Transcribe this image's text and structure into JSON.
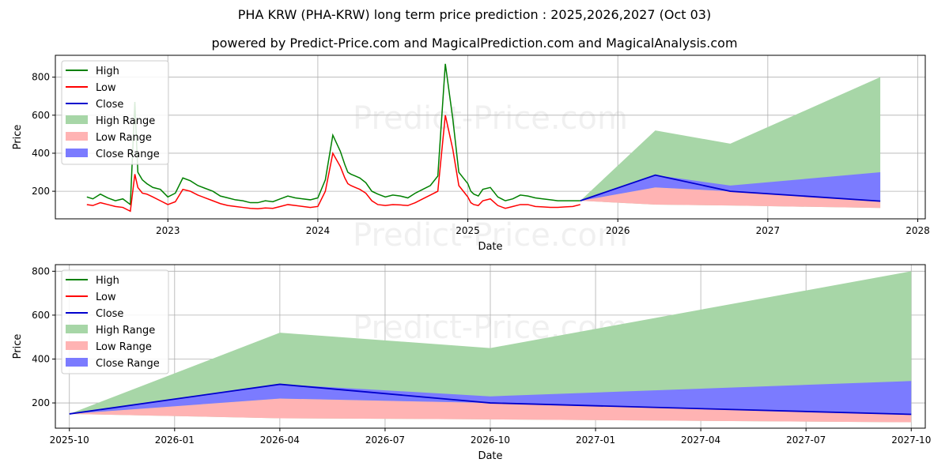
{
  "title": "PHA KRW (PHA-KRW) long term price prediction : 2025,2026,2027 (Oct 03)",
  "subtitle": "powered by Predict-Price.com and MagicalPrediction.com and MagicalAnalysis.com",
  "watermark": "Predict-Price.com",
  "colors": {
    "high": "#008000",
    "low": "#ff0000",
    "close": "#0000cd",
    "high_range": "#a7d6a7",
    "low_range": "#ffb3b3",
    "close_range": "#7b7bff"
  },
  "legend": [
    "High",
    "Low",
    "Close",
    "High Range",
    "Low Range",
    "Close Range"
  ],
  "chart_data": [
    {
      "type": "line",
      "title": "",
      "xlabel": "Date",
      "ylabel": "Price",
      "xlim": [
        2022.25,
        2028.05
      ],
      "ylim": [
        55,
        915
      ],
      "xticks": [
        2023,
        2024,
        2025,
        2026,
        2027,
        2028
      ],
      "xtick_labels": [
        "2023",
        "2024",
        "2025",
        "2026",
        "2027",
        "2028"
      ],
      "yticks": [
        200,
        400,
        600,
        800
      ],
      "grid": true,
      "legend_position": "upper-left",
      "history": {
        "x": [
          2022.46,
          2022.5,
          2022.55,
          2022.6,
          2022.65,
          2022.7,
          2022.75,
          2022.78,
          2022.8,
          2022.83,
          2022.86,
          2022.9,
          2022.95,
          2023.0,
          2023.05,
          2023.1,
          2023.15,
          2023.2,
          2023.25,
          2023.3,
          2023.35,
          2023.4,
          2023.45,
          2023.5,
          2023.55,
          2023.6,
          2023.65,
          2023.7,
          2023.75,
          2023.8,
          2023.85,
          2023.9,
          2023.95,
          2024.0,
          2024.05,
          2024.1,
          2024.15,
          2024.18,
          2024.2,
          2024.22,
          2024.25,
          2024.28,
          2024.32,
          2024.36,
          2024.4,
          2024.45,
          2024.5,
          2024.55,
          2024.6,
          2024.65,
          2024.7,
          2024.75,
          2024.8,
          2024.85,
          2024.9,
          2024.94,
          2024.98,
          2025.0,
          2025.02,
          2025.04,
          2025.07,
          2025.1,
          2025.15,
          2025.2,
          2025.25,
          2025.3,
          2025.35,
          2025.4,
          2025.45,
          2025.5,
          2025.55,
          2025.6,
          2025.65,
          2025.7,
          2025.75
        ],
        "high": [
          170,
          160,
          185,
          165,
          150,
          160,
          130,
          670,
          300,
          260,
          240,
          220,
          210,
          170,
          190,
          270,
          255,
          230,
          215,
          200,
          175,
          165,
          155,
          150,
          140,
          140,
          150,
          145,
          160,
          175,
          165,
          160,
          155,
          165,
          260,
          495,
          410,
          340,
          300,
          290,
          280,
          270,
          245,
          200,
          185,
          170,
          180,
          175,
          165,
          190,
          210,
          230,
          280,
          870,
          580,
          300,
          260,
          240,
          200,
          185,
          175,
          210,
          220,
          170,
          150,
          160,
          180,
          175,
          165,
          160,
          155,
          150,
          150,
          150,
          150
        ],
        "low": [
          130,
          125,
          140,
          130,
          120,
          115,
          95,
          290,
          220,
          190,
          185,
          170,
          150,
          130,
          145,
          210,
          200,
          180,
          165,
          150,
          135,
          125,
          120,
          115,
          110,
          108,
          112,
          110,
          120,
          130,
          125,
          120,
          115,
          120,
          200,
          400,
          330,
          270,
          240,
          230,
          220,
          210,
          190,
          150,
          130,
          125,
          130,
          128,
          125,
          140,
          160,
          180,
          200,
          600,
          420,
          230,
          190,
          170,
          140,
          130,
          125,
          150,
          160,
          125,
          110,
          120,
          130,
          130,
          120,
          118,
          115,
          115,
          118,
          120,
          130
        ]
      },
      "forecast": {
        "x": [
          2025.75,
          2026.25,
          2026.75,
          2027.75
        ],
        "high": [
          150,
          520,
          450,
          800
        ],
        "low": [
          150,
          130,
          125,
          112
        ],
        "close": [
          150,
          285,
          200,
          148
        ],
        "close_upper": [
          150,
          285,
          230,
          300
        ],
        "close_lower": [
          150,
          220,
          200,
          148
        ]
      }
    },
    {
      "type": "line",
      "title": "",
      "xlabel": "Date",
      "ylabel": "Price",
      "xlim": [
        -0.4,
        24.4
      ],
      "ylim": [
        85,
        830
      ],
      "xticks": [
        0,
        3,
        6,
        9,
        12,
        15,
        18,
        21,
        24
      ],
      "xtick_labels": [
        "2025-10",
        "2026-01",
        "2026-04",
        "2026-07",
        "2026-10",
        "2027-01",
        "2027-04",
        "2027-07",
        "2027-10"
      ],
      "yticks": [
        200,
        400,
        600,
        800
      ],
      "grid": true,
      "legend_position": "upper-left",
      "forecast": {
        "x": [
          0,
          6,
          12,
          24
        ],
        "high": [
          150,
          520,
          450,
          800
        ],
        "low": [
          150,
          130,
          125,
          112
        ],
        "close": [
          150,
          285,
          200,
          148
        ],
        "close_upper": [
          150,
          285,
          230,
          300
        ],
        "close_lower": [
          150,
          220,
          200,
          148
        ]
      }
    }
  ]
}
